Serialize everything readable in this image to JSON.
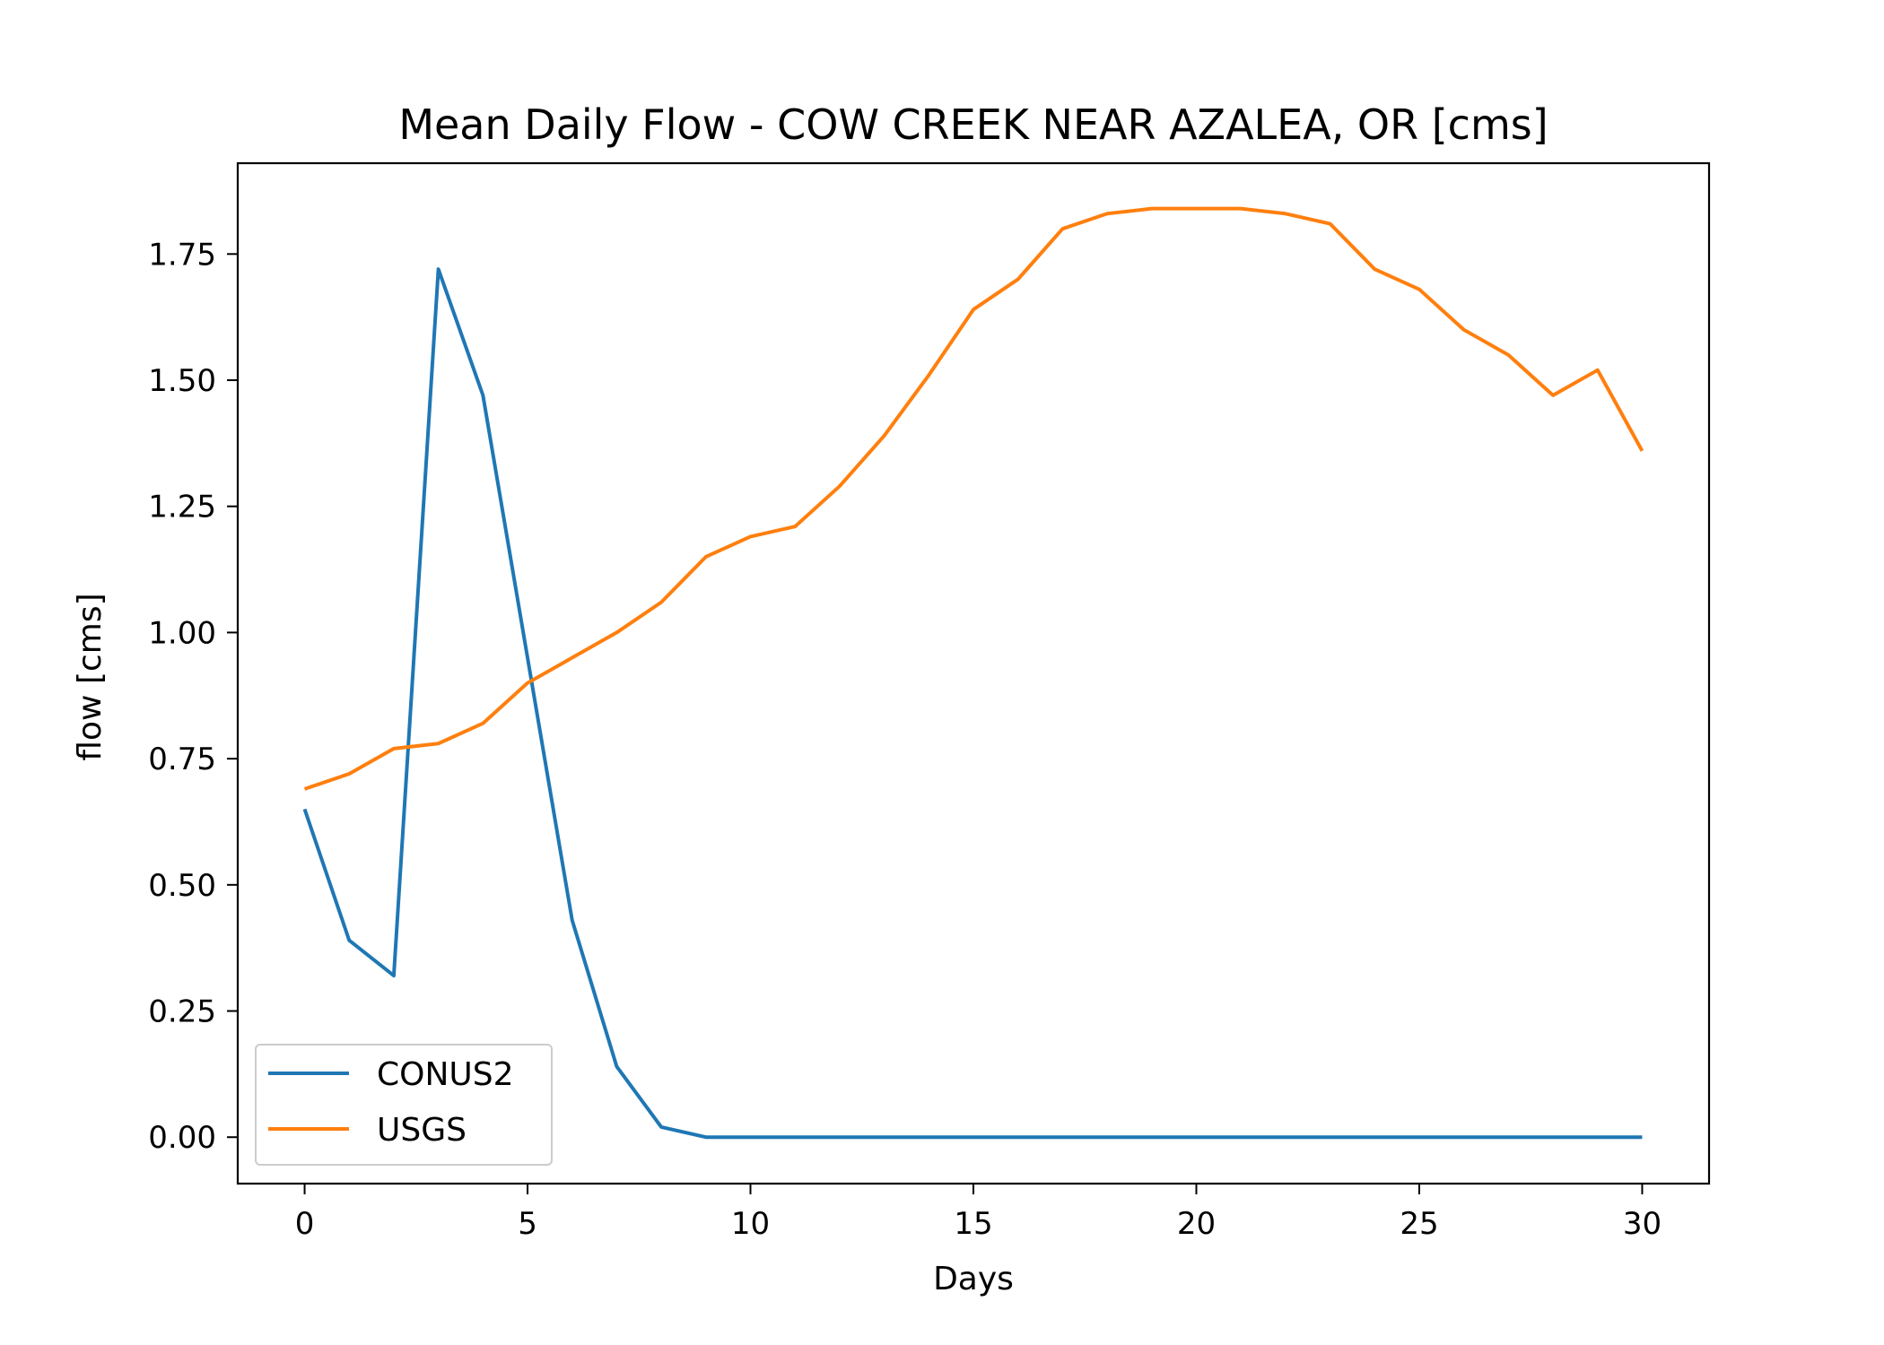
{
  "chart_data": {
    "type": "line",
    "title": "Mean Daily Flow - COW CREEK NEAR AZALEA, OR [cms]",
    "xlabel": "Days",
    "ylabel": "flow [cms]",
    "xlim": [
      -1.5,
      31.5
    ],
    "ylim": [
      -0.092,
      1.93
    ],
    "xticks": [
      0,
      5,
      10,
      15,
      20,
      25,
      30
    ],
    "xtick_labels": [
      "0",
      "5",
      "10",
      "15",
      "20",
      "25",
      "30"
    ],
    "yticks": [
      0.0,
      0.25,
      0.5,
      0.75,
      1.0,
      1.25,
      1.5,
      1.75
    ],
    "ytick_labels": [
      "0.00",
      "0.25",
      "0.50",
      "0.75",
      "1.00",
      "1.25",
      "1.50",
      "1.75"
    ],
    "grid": false,
    "legend": "lower-left",
    "x": [
      0,
      1,
      2,
      3,
      4,
      5,
      6,
      7,
      8,
      9,
      10,
      11,
      12,
      13,
      14,
      15,
      16,
      17,
      18,
      19,
      20,
      21,
      22,
      23,
      24,
      25,
      26,
      27,
      28,
      29,
      30
    ],
    "series": [
      {
        "name": "CONUS2",
        "color": "#1f77b4",
        "values": [
          0.65,
          0.39,
          0.32,
          1.72,
          1.47,
          0.95,
          0.43,
          0.14,
          0.02,
          0.0,
          0.0,
          0.0,
          0.0,
          0.0,
          0.0,
          0.0,
          0.0,
          0.0,
          0.0,
          0.0,
          0.0,
          0.0,
          0.0,
          0.0,
          0.0,
          0.0,
          0.0,
          0.0,
          0.0,
          0.0,
          0.0
        ]
      },
      {
        "name": "USGS",
        "color": "#ff7f0e",
        "values": [
          0.69,
          0.72,
          0.77,
          0.78,
          0.82,
          0.9,
          0.95,
          1.0,
          1.06,
          1.15,
          1.19,
          1.21,
          1.29,
          1.39,
          1.51,
          1.64,
          1.7,
          1.8,
          1.83,
          1.84,
          1.84,
          1.84,
          1.83,
          1.81,
          1.72,
          1.68,
          1.6,
          1.55,
          1.47,
          1.52,
          1.36
        ]
      }
    ]
  }
}
